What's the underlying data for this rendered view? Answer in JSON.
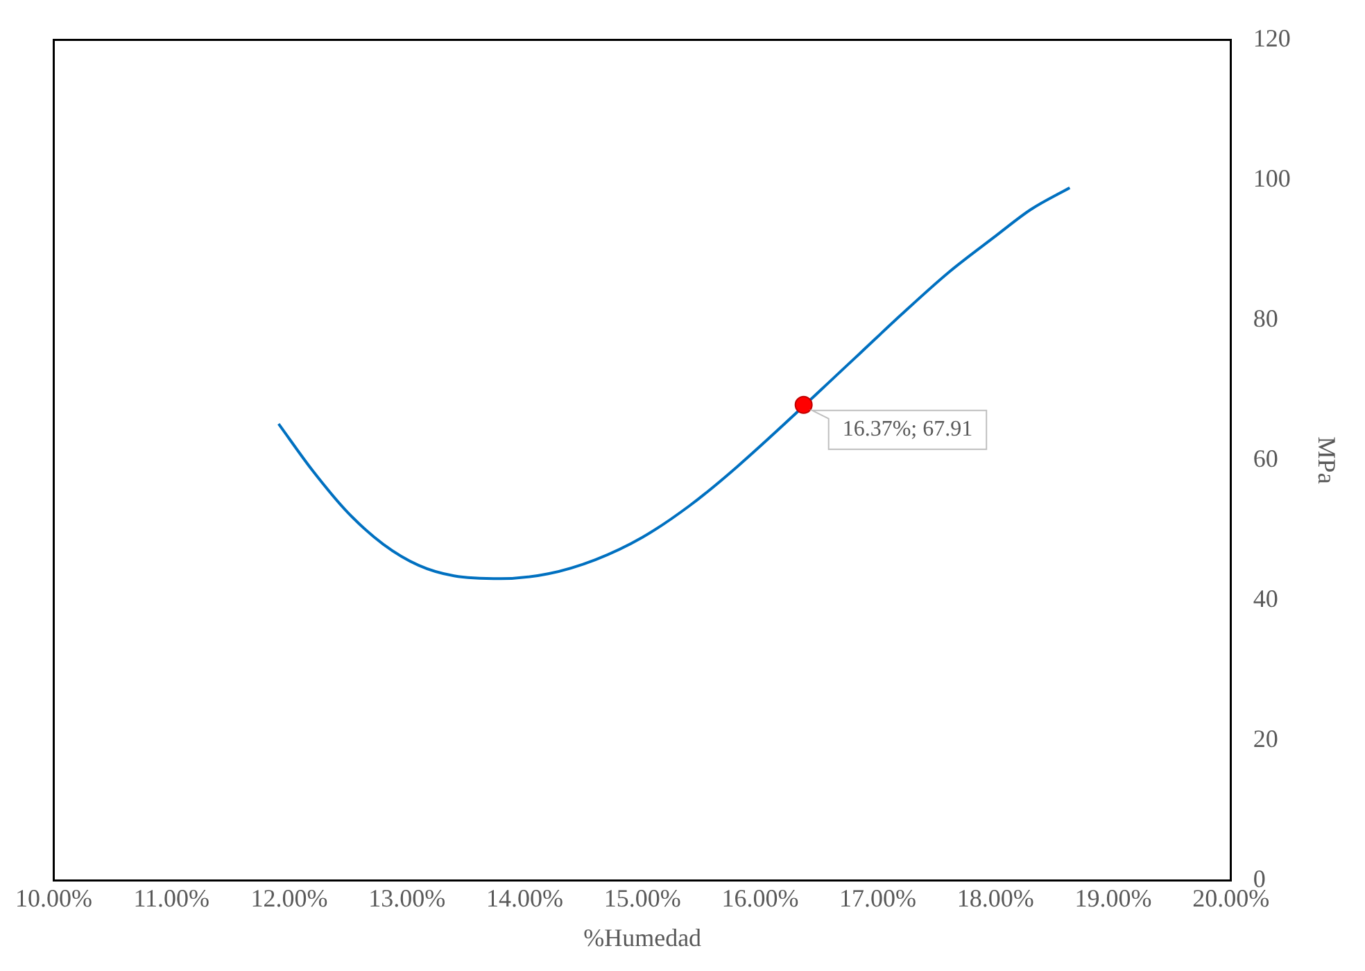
{
  "chart_data": {
    "type": "line",
    "xlabel": "%Humedad",
    "ylabel": "MPa",
    "xlim": [
      10,
      20
    ],
    "xticks": [
      {
        "value": 10,
        "label": "10.00%"
      },
      {
        "value": 11,
        "label": "11.00%"
      },
      {
        "value": 12,
        "label": "12.00%"
      },
      {
        "value": 13,
        "label": "13.00%"
      },
      {
        "value": 14,
        "label": "14.00%"
      },
      {
        "value": 15,
        "label": "15.00%"
      },
      {
        "value": 16,
        "label": "16.00%"
      },
      {
        "value": 17,
        "label": "17.00%"
      },
      {
        "value": 18,
        "label": "18.00%"
      },
      {
        "value": 19,
        "label": "19.00%"
      },
      {
        "value": 20,
        "label": "20.00%"
      }
    ],
    "ylim": [
      0,
      120
    ],
    "yticks": [
      0,
      20,
      40,
      60,
      80,
      100,
      120
    ],
    "grid": false,
    "legend": false,
    "series": [
      {
        "color": "#0070c0",
        "marker": "none",
        "x": [
          11.91,
          12.2,
          12.5,
          12.8,
          13.1,
          13.4,
          13.8,
          14.2,
          14.6,
          15.0,
          15.4,
          15.8,
          16.8,
          17.2,
          17.6,
          18.0,
          18.3,
          18.63
        ],
        "values": [
          65.2,
          58.5,
          52.5,
          48.0,
          45.0,
          43.5,
          43.1,
          43.8,
          45.8,
          49.0,
          53.5,
          59.0,
          74.5,
          80.8,
          86.8,
          92.0,
          95.8,
          98.9
        ]
      },
      {
        "type": "scatter",
        "color": "#ff0000",
        "marker": "circle",
        "x": [
          16.37
        ],
        "values": [
          67.91
        ]
      }
    ],
    "annotations": [
      {
        "text": "16.37%; 67.91",
        "x": 16.37,
        "y": 67.91
      }
    ]
  }
}
